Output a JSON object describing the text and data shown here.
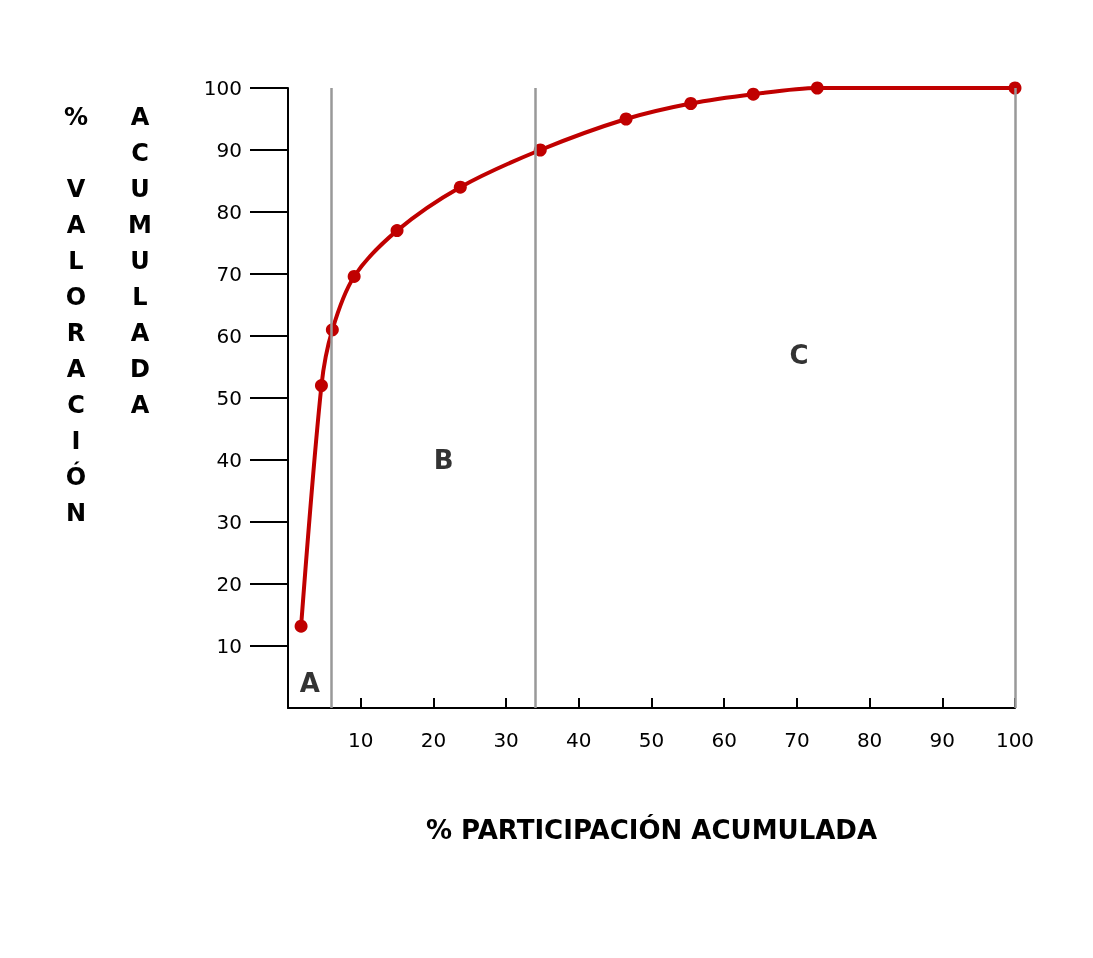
{
  "chart_data": {
    "type": "line",
    "xlabel": "% PARTICIPACIÓN ACUMULADA",
    "ylabel": "% VALORACIÓN ACUMULADA",
    "x": [
      1.8,
      4.6,
      6.1,
      9.1,
      15,
      23.7,
      34.7,
      46.5,
      55.4,
      64,
      72.8,
      100
    ],
    "series": [
      {
        "color": "#c00000",
        "values": [
          13.2,
          52,
          61,
          69.6,
          77,
          84,
          90,
          95,
          97.5,
          99,
          100,
          100
        ]
      }
    ],
    "xlim": [
      0,
      100
    ],
    "xticks": [
      10,
      20,
      30,
      40,
      50,
      60,
      70,
      80,
      90,
      100
    ],
    "ylim": [
      0,
      100
    ],
    "yticks": [
      10,
      20,
      30,
      40,
      50,
      60,
      70,
      80,
      90,
      100
    ],
    "ref_lines": [
      {
        "axis": "x",
        "value": 6,
        "color": "#999999"
      },
      {
        "axis": "x",
        "value": 34,
        "color": "#999999"
      },
      {
        "axis": "x",
        "value": 100,
        "color": "#999999"
      }
    ],
    "annotations": [
      "A",
      "B",
      "C"
    ],
    "marker": "circle",
    "line_style": "solid"
  }
}
